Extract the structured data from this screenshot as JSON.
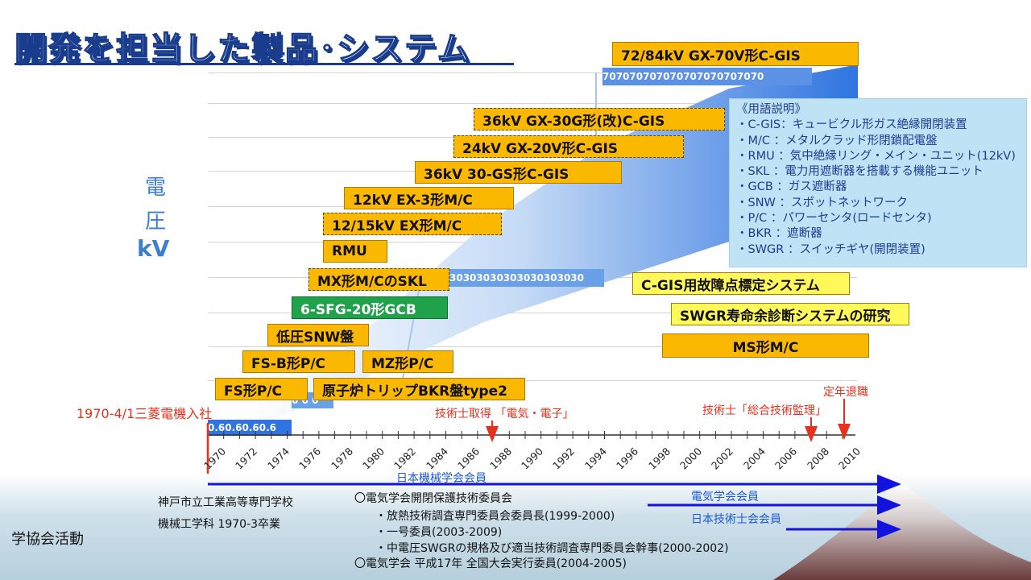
{
  "title": "開発を担当した製品･システム",
  "chart_data": {
    "type": "timeline",
    "xlabel": "",
    "ylabel": "電圧 kV",
    "x_ticks": [
      "1970",
      "1972",
      "1974",
      "1976",
      "1978",
      "1980",
      "1982",
      "1984",
      "1986",
      "1988",
      "1990",
      "1992",
      "1994",
      "1996",
      "1998",
      "2000",
      "2002",
      "2004",
      "2006",
      "2008",
      "2010"
    ],
    "voltage_bands": [
      {
        "label": "0.6",
        "repeat": "0.60.60.60.6"
      },
      {
        "label": "6",
        "repeat": "6 6 6"
      },
      {
        "label": "30",
        "repeat": "30303030303030303030"
      },
      {
        "label": "70",
        "repeat": "707070707070707070707070"
      }
    ],
    "products": [
      {
        "label": "72/84kV GX-70V形C-GIS",
        "style": "solid"
      },
      {
        "label": "36kV GX-30G形(改)C-GIS",
        "style": "dashed"
      },
      {
        "label": "24kV GX-20V形C-GIS",
        "style": "dashed"
      },
      {
        "label": "36kV 30-GS形C-GIS",
        "style": "solid"
      },
      {
        "label": "12kV EX-3形M/C",
        "style": "solid"
      },
      {
        "label": "12/15kV EX形M/C",
        "style": "dashed"
      },
      {
        "label": "RMU",
        "style": "solid"
      },
      {
        "label": "MX形M/CのSKL",
        "style": "dashed"
      },
      {
        "label": "6-SFG-20形GCB",
        "style": "green"
      },
      {
        "label": "低圧SNW盤",
        "style": "solid"
      },
      {
        "label": "FS-B形P/C",
        "style": "solid"
      },
      {
        "label": "MZ形P/C",
        "style": "solid"
      },
      {
        "label": "FS形P/C",
        "style": "solid"
      },
      {
        "label": "原子炉トリップBKR盤type2",
        "style": "solid"
      },
      {
        "label": "C-GIS用故障点標定システム",
        "style": "yellow"
      },
      {
        "label": "SWGR寿命余診断システムの研究",
        "style": "yellow"
      },
      {
        "label": "MS形M/C",
        "style": "solid"
      }
    ],
    "events": [
      {
        "label": "1970-4/1三菱電機入社",
        "year": 1970
      },
      {
        "label": "技術士取得 「電気・電子」",
        "year": 1988
      },
      {
        "label": "技術士「総合技術監理」",
        "year": 2007
      },
      {
        "label": "定年退職",
        "year": 2010
      }
    ]
  },
  "y_axis_label": {
    "line1": "電",
    "line2": "圧",
    "line3": "kV"
  },
  "glossary": [
    "《用語説明》",
    "・C-GIS：キュービクル形ガス絶縁開閉装置",
    "・M/C ：メタルクラッド形閉鎖配電盤",
    "・RMU ：気中絶縁リング・メイン・ユニット(12kV)",
    "・SKL ：電力用遮断器を搭載する機能ユニット",
    "・GCB ：ガス遮断器",
    "・SNW ：スポットネットワーク",
    "・P/C ：パワーセンタ(ロードセンタ)",
    "・BKR ：遮断器",
    "・SWGR ：スイッチギヤ(開閉装置)"
  ],
  "bottom": {
    "section_label": "学協会活動",
    "school_line1": "神戸市立工業高等専門学校",
    "school_line2": "機械工学科 1970-3卒業",
    "jsme": "日本機械学会会員",
    "iee_member": "電気学会会員",
    "pe_member": "日本技術士会会員",
    "activities": [
      "〇電気学会開閉保護技術委員会",
      "・放熱技術調査専門委員会委員長(1999-2000)",
      "・一号委員(2003-2009)",
      "・中電圧SWGRの規格及び適当技術調査専門委員会幹事(2000-2002)",
      "〇電気学会 平成17年 全国大会実行委員(2004-2005)"
    ]
  },
  "colors": {
    "accent": "#3a7fd0",
    "product": "#fbb800",
    "event": "#e8301c"
  }
}
